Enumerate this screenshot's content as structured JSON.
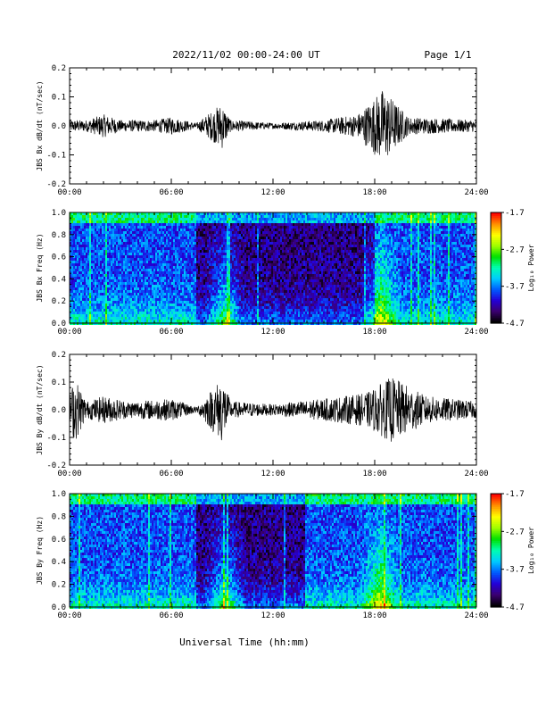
{
  "header": {
    "title": "2022/11/02  00:00-24:00 UT",
    "page": "Page 1/1"
  },
  "xlabel": "Universal Time (hh:mm)",
  "x_ticks": [
    "00:00",
    "06:00",
    "12:00",
    "18:00",
    "24:00"
  ],
  "colorbar": {
    "label": "Log₁₀ Power",
    "ticks": [
      "-1.7",
      "-2.7",
      "-3.7",
      "-4.7"
    ],
    "range": [
      -4.7,
      -1.7
    ],
    "colors": [
      "#000000",
      "#3b0070",
      "#2400d8",
      "#005cff",
      "#00ccff",
      "#00ffb0",
      "#00e000",
      "#a0ff00",
      "#ffff00",
      "#ff9000",
      "#ff0000"
    ]
  },
  "chart_data": [
    {
      "type": "line",
      "ylabel": "JBS Bx dB/dt (nT/sec)",
      "y_ticks": [
        "0.2",
        "0.1",
        "0.0",
        "-0.1",
        "-0.2"
      ],
      "ylim": [
        -0.2,
        0.2
      ],
      "xlim_hours": [
        0,
        24
      ],
      "envelope": [
        {
          "hour": 0,
          "amp": 0.02
        },
        {
          "hour": 1,
          "amp": 0.02
        },
        {
          "hour": 2,
          "amp": 0.04
        },
        {
          "hour": 3,
          "amp": 0.02
        },
        {
          "hour": 5,
          "amp": 0.02
        },
        {
          "hour": 6,
          "amp": 0.03
        },
        {
          "hour": 7.5,
          "amp": 0.01
        },
        {
          "hour": 9,
          "amp": 0.08
        },
        {
          "hour": 9.5,
          "amp": 0.02
        },
        {
          "hour": 12,
          "amp": 0.01
        },
        {
          "hour": 15,
          "amp": 0.02
        },
        {
          "hour": 17,
          "amp": 0.04
        },
        {
          "hour": 18.5,
          "amp": 0.13
        },
        {
          "hour": 20,
          "amp": 0.03
        },
        {
          "hour": 24,
          "amp": 0.02
        }
      ]
    },
    {
      "type": "heatmap",
      "ylabel": "JBS Bx Freq (Hz)",
      "y_ticks": [
        "1.0",
        "0.8",
        "0.6",
        "0.4",
        "0.2",
        "0.0"
      ],
      "ylim": [
        0,
        1
      ],
      "xlim_hours": [
        0,
        24
      ],
      "zlim": [
        -4.7,
        -1.7
      ],
      "quiet_interval_hours": [
        7.4,
        18.0
      ],
      "enhanced_burst_hours": [
        9.1,
        18.3
      ]
    },
    {
      "type": "line",
      "ylabel": "JBS By dB/dt (nT/sec)",
      "y_ticks": [
        "0.2",
        "0.1",
        "0.0",
        "-0.1",
        "-0.2"
      ],
      "ylim": [
        -0.2,
        0.2
      ],
      "xlim_hours": [
        0,
        24
      ],
      "envelope": [
        {
          "hour": 0,
          "amp": 0.05
        },
        {
          "hour": 0.3,
          "amp": 0.12
        },
        {
          "hour": 1,
          "amp": 0.03
        },
        {
          "hour": 2,
          "amp": 0.05
        },
        {
          "hour": 3.5,
          "amp": 0.03
        },
        {
          "hour": 6,
          "amp": 0.04
        },
        {
          "hour": 7.5,
          "amp": 0.01
        },
        {
          "hour": 9,
          "amp": 0.12
        },
        {
          "hour": 9.5,
          "amp": 0.03
        },
        {
          "hour": 12,
          "amp": 0.02
        },
        {
          "hour": 15,
          "amp": 0.04
        },
        {
          "hour": 17.5,
          "amp": 0.06
        },
        {
          "hour": 19,
          "amp": 0.12
        },
        {
          "hour": 21,
          "amp": 0.05
        },
        {
          "hour": 24,
          "amp": 0.03
        }
      ]
    },
    {
      "type": "heatmap",
      "ylabel": "JBS By Freq (Hz)",
      "y_ticks": [
        "1.0",
        "0.8",
        "0.6",
        "0.4",
        "0.2",
        "0.0"
      ],
      "ylim": [
        0,
        1
      ],
      "xlim_hours": [
        0,
        24
      ],
      "zlim": [
        -4.7,
        -1.7
      ],
      "quiet_interval_hours": [
        7.4,
        14.0
      ],
      "enhanced_burst_hours": [
        9.1,
        18.3
      ]
    }
  ]
}
